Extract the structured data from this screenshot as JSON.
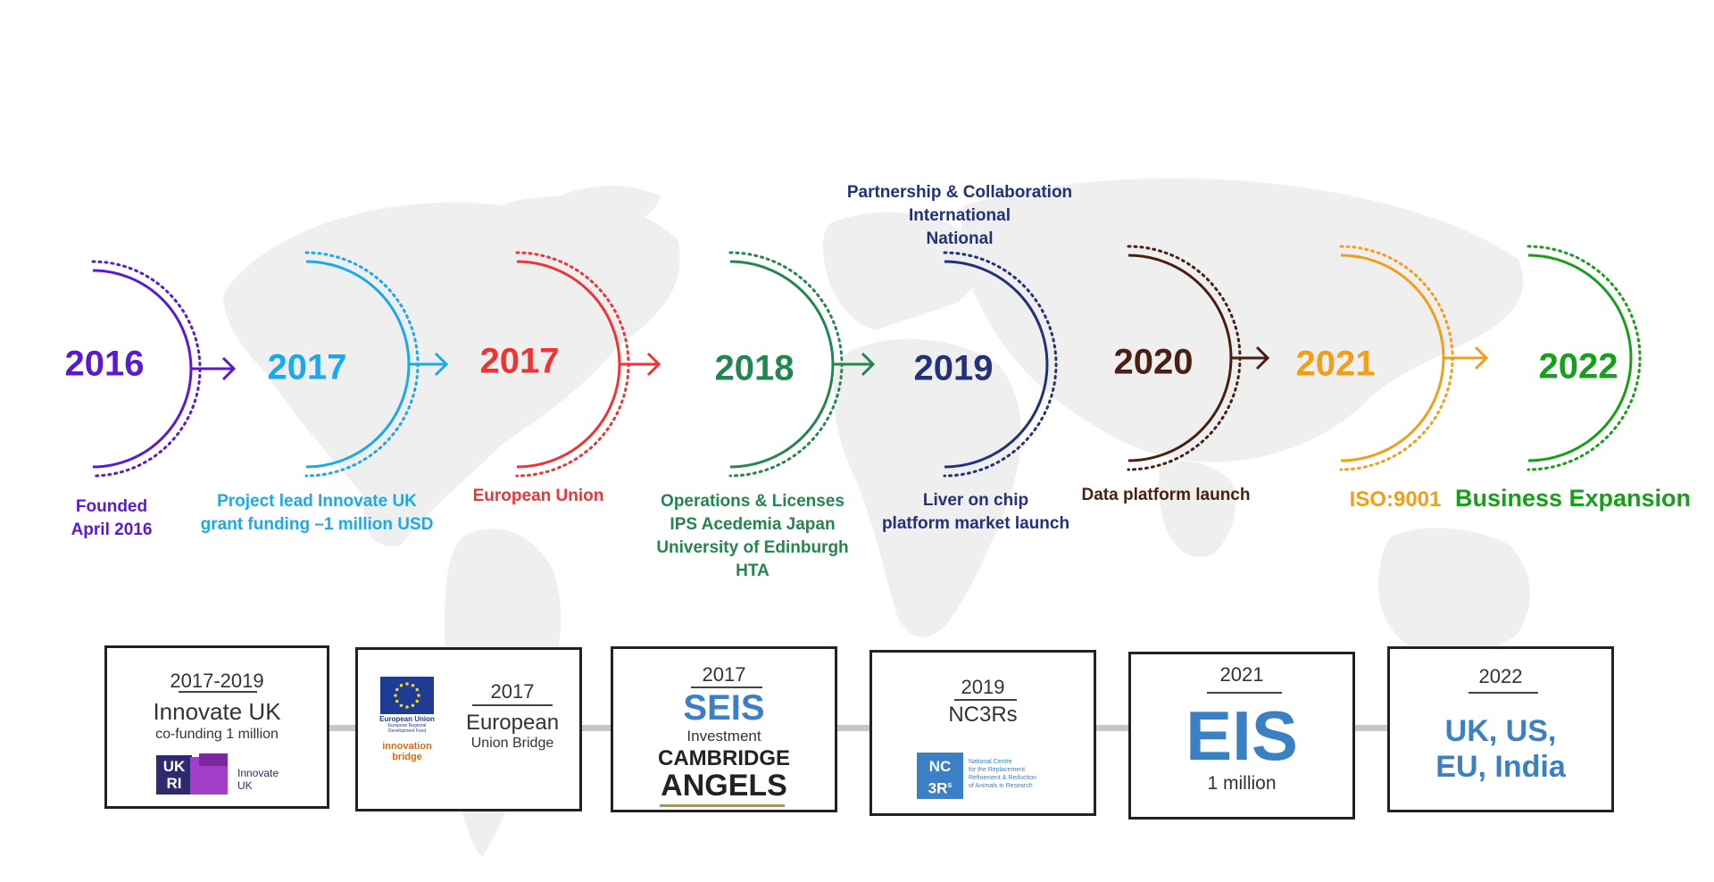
{
  "colors": {
    "purple": "#5b19d6",
    "skyblue": "#19a9ee",
    "red": "#ee3434",
    "green": "#22874e",
    "navy": "#22327a",
    "brown": "#4a1e10",
    "orange": "#f29e19",
    "brightgreen": "#16a019",
    "map": "#efefef",
    "brand_blue": "#3b7fc4"
  },
  "timeline": [
    {
      "year": "2016",
      "color": "#5b19d6",
      "caption": [
        "Founded",
        "April 2016"
      ]
    },
    {
      "year": "2017",
      "color": "#19a9ee",
      "caption": [
        "Project lead Innovate UK",
        "grant funding –1 million USD"
      ]
    },
    {
      "year": "2017",
      "color": "#ee3434",
      "caption": [
        "European Union"
      ]
    },
    {
      "year": "2018",
      "color": "#22874e",
      "caption": [
        "Operations & Licenses",
        "IPS Acedemia Japan",
        "University of Edinburgh",
        "HTA"
      ]
    },
    {
      "year": "2019",
      "color": "#22327a",
      "caption": [
        "Liver on chip",
        "platform market launch"
      ],
      "top_note": [
        "Partnership & Collaboration",
        "International",
        "National"
      ]
    },
    {
      "year": "2020",
      "color": "#4a1e10",
      "caption": [
        "Data platform launch"
      ]
    },
    {
      "year": "2021",
      "color": "#f29e19",
      "caption": [
        "ISO:9001"
      ]
    },
    {
      "year": "2022",
      "color": "#16a019",
      "caption": [
        "Business Expansion"
      ]
    }
  ],
  "cards": [
    {
      "year": "2017-2019",
      "title": "Innovate UK",
      "subtitle": "co-funding 1 million",
      "logo_text": [
        "Innovate",
        "UK"
      ],
      "logo_letters": [
        "UK",
        "RI"
      ]
    },
    {
      "year": "2017",
      "title": "European",
      "subtitle": "Union Bridge",
      "logo_text": [
        "European Union",
        "European Regional",
        "Development Fund",
        "innovation",
        "bridge"
      ]
    },
    {
      "year": "2017",
      "title": "SEIS",
      "subtitle": "Investment",
      "logo_text": [
        "CAMBRIDGE",
        "ANGELS"
      ]
    },
    {
      "year": "2019",
      "title": "NC3Rs",
      "logo_text": [
        "NC",
        "3R",
        "s",
        "National Centre",
        "for the Replacement",
        "Refinement & Reduction",
        "of Animals in Research"
      ]
    },
    {
      "year": "2021",
      "title": "EIS",
      "subtitle": "1 million"
    },
    {
      "year": "2022",
      "title": "UK, US,",
      "subtitle": "EU, India"
    }
  ]
}
